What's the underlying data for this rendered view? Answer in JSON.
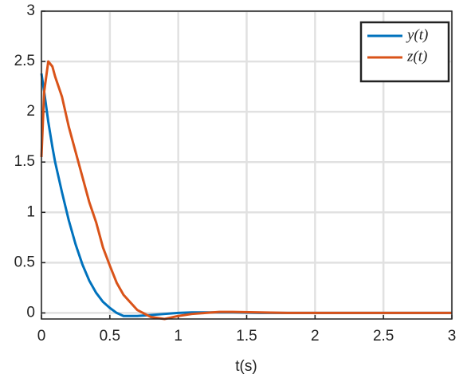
{
  "chart_data": {
    "type": "line",
    "xlabel": "t(s)",
    "x": [
      0,
      0.02,
      0.05,
      0.08,
      0.1,
      0.15,
      0.2,
      0.25,
      0.3,
      0.35,
      0.4,
      0.45,
      0.5,
      0.55,
      0.6,
      0.7,
      0.8,
      0.9,
      1,
      1.1,
      1.2,
      1.3,
      1.4,
      1.6,
      1.8,
      2,
      2.5,
      3
    ],
    "series": [
      {
        "name": "y(t)",
        "color": "#0072bd",
        "values": [
          2.38,
          2.2,
          1.9,
          1.65,
          1.5,
          1.2,
          0.92,
          0.68,
          0.48,
          0.32,
          0.2,
          0.11,
          0.05,
          0.0,
          -0.03,
          -0.03,
          -0.02,
          -0.01,
          0,
          0.005,
          0.005,
          0.005,
          0.005,
          0,
          0,
          0,
          0,
          0
        ]
      },
      {
        "name": "z(t)",
        "color": "#d95319",
        "values": [
          1.55,
          2.2,
          2.5,
          2.45,
          2.35,
          2.15,
          1.85,
          1.6,
          1.35,
          1.1,
          0.9,
          0.65,
          0.47,
          0.3,
          0.18,
          0.03,
          -0.04,
          -0.06,
          -0.03,
          -0.01,
          0.0,
          0.01,
          0.01,
          0.005,
          0,
          0,
          0,
          0
        ]
      }
    ],
    "xlim": [
      0,
      3
    ],
    "ylim": [
      -0.06,
      3
    ],
    "xticks": [
      0,
      0.5,
      1,
      1.5,
      2,
      2.5,
      3
    ],
    "yticks": [
      0,
      0.5,
      1,
      1.5,
      2,
      2.5,
      3
    ],
    "grid": true,
    "legend": "northeast"
  }
}
